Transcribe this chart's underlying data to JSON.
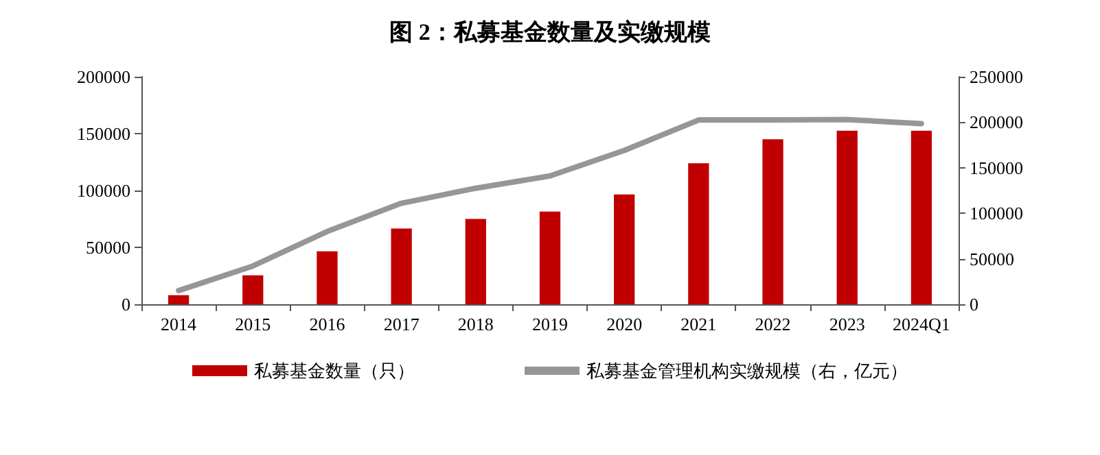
{
  "chart_data": {
    "type": "bar",
    "title": "图 2：私募基金数量及实缴规模",
    "categories": [
      "2014",
      "2015",
      "2016",
      "2017",
      "2018",
      "2019",
      "2020",
      "2021",
      "2022",
      "2023",
      "2024Q1"
    ],
    "series": [
      {
        "name": "私募基金数量（只）",
        "color": "#c00000",
        "values": [
          8000,
          25500,
          46500,
          66500,
          75000,
          81500,
          96500,
          124000,
          145000,
          152500,
          152500
        ]
      },
      {
        "name": "私募基金管理机构实缴规模（右，亿元）",
        "type": "line",
        "axis": "y2",
        "color": "#969696",
        "values": [
          15000,
          42000,
          80000,
          111000,
          127500,
          141000,
          169000,
          202500,
          202500,
          203000,
          198500
        ]
      }
    ],
    "ylim": [
      0,
      200000
    ],
    "yticks": [
      0,
      50000,
      100000,
      150000,
      200000
    ],
    "y2lim": [
      0,
      250000
    ],
    "y2ticks": [
      0,
      50000,
      100000,
      150000,
      200000,
      250000
    ],
    "grid": false,
    "legend": "bottom",
    "marker": "none",
    "line_style": "solid"
  }
}
